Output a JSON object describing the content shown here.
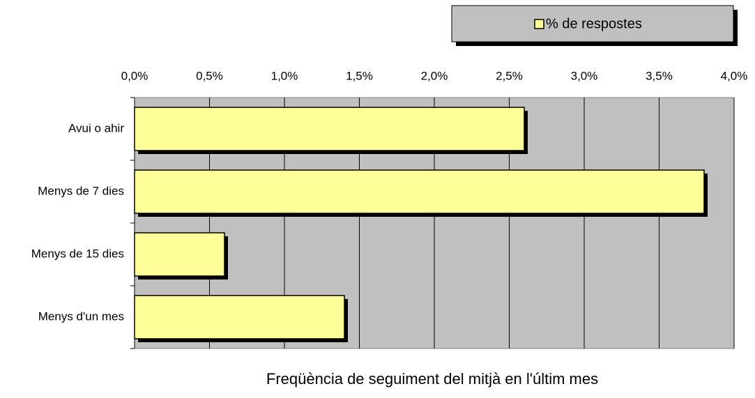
{
  "chart_data": {
    "type": "hbar",
    "title": "Freqüència de seguiment del mitjà en l'últim mes",
    "categories": [
      "Avui o ahir",
      "Menys de 7 dies",
      "Menys de 15 dies",
      "Menys d'un mes"
    ],
    "series": [
      {
        "name": "% de respostes",
        "color": "#ffff99",
        "values": [
          2.6,
          3.8,
          0.6,
          1.4
        ]
      }
    ],
    "xlim": [
      0,
      4
    ],
    "xticks": [
      {
        "value": 0,
        "label": "0,0%"
      },
      {
        "value": 0.5,
        "label": "0,5%"
      },
      {
        "value": 1,
        "label": "1,0%"
      },
      {
        "value": 1.5,
        "label": "1,5%"
      },
      {
        "value": 2,
        "label": "2,0%"
      },
      {
        "value": 2.5,
        "label": "2,5%"
      },
      {
        "value": 3,
        "label": "3,0%"
      },
      {
        "value": 3.5,
        "label": "3,5%"
      },
      {
        "value": 4,
        "label": "4,0%"
      }
    ],
    "grid": true,
    "legend": "top-right"
  }
}
